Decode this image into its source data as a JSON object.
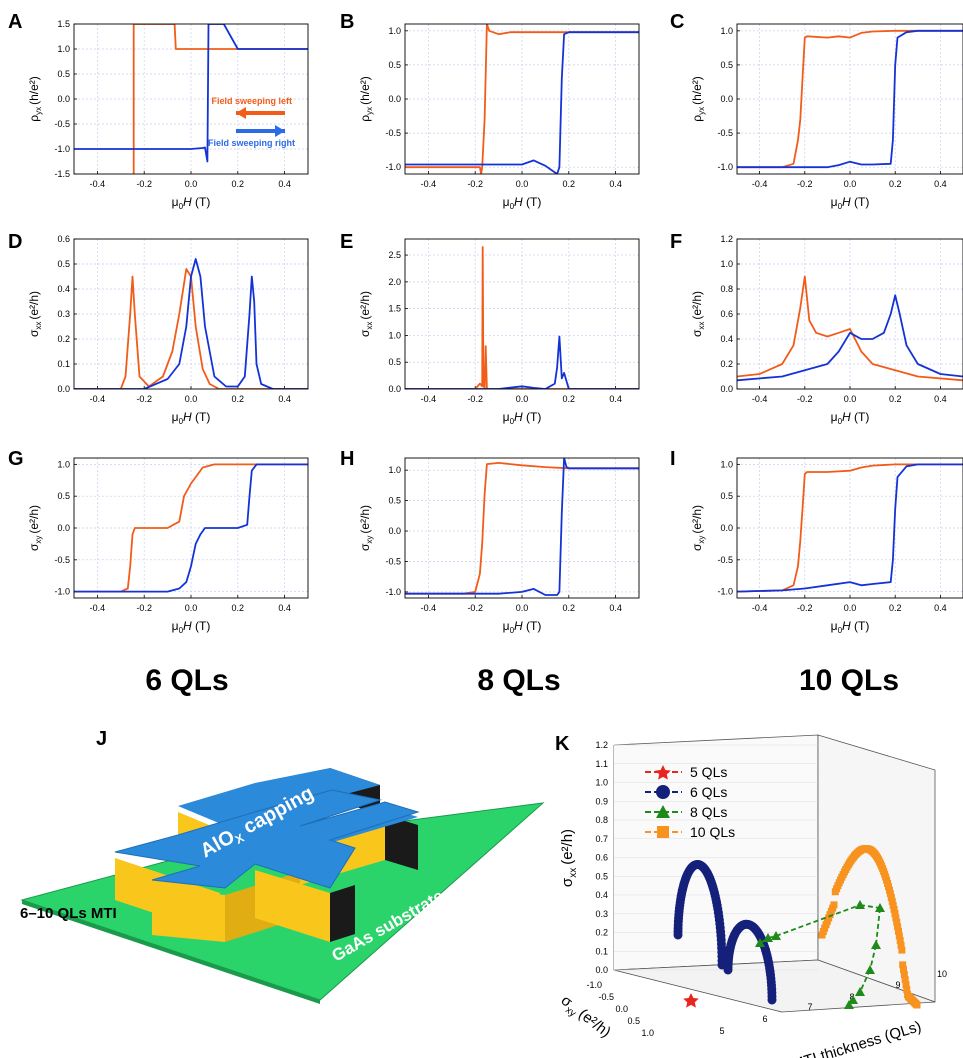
{
  "figure": {
    "column_titles": [
      "6 QLs",
      "8 QLs",
      "10 QLs"
    ],
    "xlabel_sym": "μ",
    "xlabel_sub": "0",
    "xlabel_var": "H",
    "xlabel_unit": " (T)"
  },
  "legend_A": {
    "left": "Field sweeping left",
    "right": "Field sweeping right"
  },
  "colors": {
    "sweep_left": "#f25c19",
    "sweep_right": "#1433d6",
    "grid": "#c9cdf0"
  },
  "chart_data": [
    {
      "panel": "A",
      "type": "line",
      "ylabel": {
        "sym": "ρ",
        "sub": "yx",
        "unit": "(h/e²)"
      },
      "xlim": [
        -0.5,
        0.5
      ],
      "ylim": [
        -1.5,
        1.5
      ],
      "xticks": [
        "-0.4",
        "-0.2",
        "0.0",
        "0.2",
        "0.4"
      ],
      "xtick_values": [
        -0.4,
        -0.2,
        0,
        0.2,
        0.4
      ],
      "yticks": [
        "-1.5",
        "-1.0",
        "-0.5",
        "0.0",
        "0.5",
        "1.0",
        "1.5"
      ],
      "ytick_values": [
        -1.5,
        -1,
        -0.5,
        0,
        0.5,
        1,
        1.5
      ],
      "series": [
        {
          "color": "sweep_left",
          "x": [
            -0.245,
            -0.245,
            -0.07,
            -0.065,
            -0.05,
            0.2,
            0.21,
            0.5
          ],
          "y": [
            -1.5,
            1.5,
            1.5,
            1.0,
            1.0,
            1.0,
            1.0,
            1.0
          ]
        },
        {
          "color": "sweep_right",
          "x": [
            -0.5,
            -0.1,
            0.0,
            0.05,
            0.06,
            0.07,
            0.075,
            0.08,
            0.09,
            0.14,
            0.2,
            0.3,
            0.5
          ],
          "y": [
            -1.0,
            -1.0,
            -1.0,
            -0.98,
            -0.97,
            -1.25,
            1.5,
            1.5,
            1.5,
            1.5,
            1.0,
            1.0,
            1.0
          ]
        }
      ]
    },
    {
      "panel": "B",
      "type": "line",
      "ylabel": {
        "sym": "ρ",
        "sub": "yx",
        "unit": "(h/e²)"
      },
      "xlim": [
        -0.5,
        0.5
      ],
      "ylim": [
        -1.1,
        1.1
      ],
      "xticks": [
        "-0.4",
        "-0.2",
        "0.0",
        "0.2",
        "0.4"
      ],
      "xtick_values": [
        -0.4,
        -0.2,
        0,
        0.2,
        0.4
      ],
      "yticks": [
        "-1.0",
        "-0.5",
        "0.0",
        "0.5",
        "1.0"
      ],
      "ytick_values": [
        -1,
        -0.5,
        0,
        0.5,
        1
      ],
      "series": [
        {
          "color": "sweep_left",
          "x": [
            -0.5,
            -0.2,
            -0.18,
            -0.175,
            -0.17,
            -0.16,
            -0.15,
            -0.14,
            -0.1,
            -0.05,
            0.0,
            0.1,
            0.2,
            0.5
          ],
          "y": [
            -1.0,
            -1.0,
            -1.0,
            -1.1,
            -1.0,
            -0.3,
            1.1,
            1.0,
            0.95,
            0.98,
            0.98,
            0.98,
            0.98,
            0.98
          ]
        },
        {
          "color": "sweep_right",
          "x": [
            -0.5,
            -0.2,
            -0.1,
            0.0,
            0.05,
            0.1,
            0.15,
            0.16,
            0.17,
            0.18,
            0.2,
            0.3,
            0.5
          ],
          "y": [
            -0.96,
            -0.96,
            -0.96,
            -0.96,
            -0.9,
            -0.98,
            -1.1,
            -1.0,
            0.3,
            0.95,
            0.98,
            0.98,
            0.98
          ]
        }
      ]
    },
    {
      "panel": "C",
      "type": "line",
      "ylabel": {
        "sym": "ρ",
        "sub": "yx",
        "unit": "(h/e²)"
      },
      "xlim": [
        -0.5,
        0.5
      ],
      "ylim": [
        -1.1,
        1.1
      ],
      "xticks": [
        "-0.4",
        "-0.2",
        "0.0",
        "0.2",
        "0.4"
      ],
      "xtick_values": [
        -0.4,
        -0.2,
        0,
        0.2,
        0.4
      ],
      "yticks": [
        "-1.0",
        "-0.5",
        "0.0",
        "0.5",
        "1.0"
      ],
      "ytick_values": [
        -1,
        -0.5,
        0,
        0.5,
        1
      ],
      "series": [
        {
          "color": "sweep_left",
          "x": [
            -0.5,
            -0.3,
            -0.25,
            -0.23,
            -0.22,
            -0.21,
            -0.2,
            -0.19,
            -0.1,
            -0.05,
            0.0,
            0.05,
            0.1,
            0.2,
            0.5
          ],
          "y": [
            -1.0,
            -1.0,
            -0.95,
            -0.6,
            -0.3,
            0.3,
            0.9,
            0.92,
            0.9,
            0.92,
            0.9,
            0.97,
            0.99,
            1.0,
            1.0
          ]
        },
        {
          "color": "sweep_right",
          "x": [
            -0.5,
            -0.2,
            -0.1,
            -0.05,
            0.0,
            0.05,
            0.1,
            0.18,
            0.19,
            0.2,
            0.21,
            0.25,
            0.3,
            0.5
          ],
          "y": [
            -1.0,
            -1.0,
            -1.0,
            -0.97,
            -0.92,
            -0.96,
            -0.96,
            -0.95,
            -0.6,
            0.5,
            0.9,
            0.98,
            1.0,
            1.0
          ]
        }
      ]
    },
    {
      "panel": "D",
      "type": "line",
      "ylabel": {
        "sym": "σ",
        "sub": "xx",
        "unit": "(e²/h)"
      },
      "xlim": [
        -0.5,
        0.5
      ],
      "ylim": [
        0,
        0.6
      ],
      "xticks": [
        "-0.4",
        "-0.2",
        "0.0",
        "0.2",
        "0.4"
      ],
      "xtick_values": [
        -0.4,
        -0.2,
        0,
        0.2,
        0.4
      ],
      "yticks": [
        "0.0",
        "0.1",
        "0.2",
        "0.3",
        "0.4",
        "0.5",
        "0.6"
      ],
      "ytick_values": [
        0,
        0.1,
        0.2,
        0.3,
        0.4,
        0.5,
        0.6
      ],
      "series": [
        {
          "color": "sweep_left",
          "x": [
            -0.5,
            -0.3,
            -0.28,
            -0.26,
            -0.25,
            -0.24,
            -0.22,
            -0.18,
            -0.12,
            -0.08,
            -0.05,
            -0.02,
            0.0,
            0.02,
            0.05,
            0.08,
            0.12,
            0.2,
            0.5
          ],
          "y": [
            0.0,
            0.0,
            0.05,
            0.3,
            0.45,
            0.3,
            0.05,
            0.01,
            0.05,
            0.15,
            0.3,
            0.48,
            0.45,
            0.25,
            0.08,
            0.02,
            0.0,
            0.0,
            0.0
          ]
        },
        {
          "color": "sweep_right",
          "x": [
            -0.5,
            -0.2,
            -0.1,
            -0.05,
            -0.02,
            0.0,
            0.02,
            0.04,
            0.06,
            0.1,
            0.15,
            0.2,
            0.23,
            0.25,
            0.26,
            0.27,
            0.28,
            0.3,
            0.35,
            0.5
          ],
          "y": [
            0.0,
            0.0,
            0.04,
            0.1,
            0.25,
            0.45,
            0.52,
            0.45,
            0.25,
            0.05,
            0.01,
            0.01,
            0.05,
            0.3,
            0.45,
            0.35,
            0.1,
            0.02,
            0.0,
            0.0
          ]
        }
      ]
    },
    {
      "panel": "E",
      "type": "line",
      "ylabel": {
        "sym": "σ",
        "sub": "xx",
        "unit": "(e²/h)"
      },
      "xlim": [
        -0.5,
        0.5
      ],
      "ylim": [
        0,
        2.8
      ],
      "xticks": [
        "-0.4",
        "-0.2",
        "0.0",
        "0.2",
        "0.4"
      ],
      "xtick_values": [
        -0.4,
        -0.2,
        0,
        0.2,
        0.4
      ],
      "yticks": [
        "0.0",
        "0.5",
        "1.0",
        "1.5",
        "2.0",
        "2.5"
      ],
      "ytick_values": [
        0,
        0.5,
        1,
        1.5,
        2,
        2.5
      ],
      "series": [
        {
          "color": "sweep_left",
          "x": [
            -0.5,
            -0.2,
            -0.18,
            -0.17,
            -0.168,
            -0.165,
            -0.16,
            -0.155,
            -0.15,
            -0.1,
            0.0,
            0.5
          ],
          "y": [
            0.0,
            0.0,
            0.1,
            0.05,
            2.65,
            0.1,
            0.0,
            0.8,
            0.0,
            0.0,
            0.0,
            0.0
          ]
        },
        {
          "color": "sweep_right",
          "x": [
            -0.5,
            -0.1,
            0.0,
            0.05,
            0.1,
            0.14,
            0.15,
            0.16,
            0.17,
            0.18,
            0.2,
            0.5
          ],
          "y": [
            0.0,
            0.0,
            0.05,
            0.02,
            0.0,
            0.1,
            0.4,
            0.98,
            0.2,
            0.3,
            0.0,
            0.0
          ]
        }
      ]
    },
    {
      "panel": "F",
      "type": "line",
      "ylabel": {
        "sym": "σ",
        "sub": "xx",
        "unit": "(e²/h)"
      },
      "xlim": [
        -0.5,
        0.5
      ],
      "ylim": [
        0,
        1.2
      ],
      "xticks": [
        "-0.4",
        "-0.2",
        "0.0",
        "0.2",
        "0.4"
      ],
      "xtick_values": [
        -0.4,
        -0.2,
        0,
        0.2,
        0.4
      ],
      "yticks": [
        "0.0",
        "0.2",
        "0.4",
        "0.6",
        "0.8",
        "1.0",
        "1.2"
      ],
      "ytick_values": [
        0,
        0.2,
        0.4,
        0.6,
        0.8,
        1,
        1.2
      ],
      "series": [
        {
          "color": "sweep_left",
          "x": [
            -0.5,
            -0.4,
            -0.3,
            -0.25,
            -0.22,
            -0.2,
            -0.18,
            -0.15,
            -0.1,
            -0.05,
            0.0,
            0.05,
            0.1,
            0.2,
            0.3,
            0.5
          ],
          "y": [
            0.1,
            0.12,
            0.2,
            0.35,
            0.65,
            0.9,
            0.55,
            0.45,
            0.42,
            0.45,
            0.48,
            0.3,
            0.2,
            0.15,
            0.1,
            0.07
          ]
        },
        {
          "color": "sweep_right",
          "x": [
            -0.5,
            -0.3,
            -0.2,
            -0.1,
            -0.05,
            0.0,
            0.05,
            0.1,
            0.15,
            0.18,
            0.2,
            0.22,
            0.25,
            0.3,
            0.4,
            0.5
          ],
          "y": [
            0.07,
            0.1,
            0.15,
            0.2,
            0.3,
            0.45,
            0.4,
            0.4,
            0.45,
            0.6,
            0.75,
            0.6,
            0.35,
            0.2,
            0.12,
            0.1
          ]
        }
      ]
    },
    {
      "panel": "G",
      "type": "line",
      "ylabel": {
        "sym": "σ",
        "sub": "xy",
        "unit": "(e²/h)"
      },
      "xlim": [
        -0.5,
        0.5
      ],
      "ylim": [
        -1.1,
        1.1
      ],
      "xticks": [
        "-0.4",
        "-0.2",
        "0.0",
        "0.2",
        "0.4"
      ],
      "xtick_values": [
        -0.4,
        -0.2,
        0,
        0.2,
        0.4
      ],
      "yticks": [
        "-1.0",
        "-0.5",
        "0.0",
        "0.5",
        "1.0"
      ],
      "ytick_values": [
        -1,
        -0.5,
        0,
        0.5,
        1
      ],
      "series": [
        {
          "color": "sweep_left",
          "x": [
            -0.5,
            -0.3,
            -0.27,
            -0.26,
            -0.25,
            -0.24,
            -0.1,
            -0.05,
            -0.03,
            0.0,
            0.05,
            0.1,
            0.2,
            0.5
          ],
          "y": [
            -1.0,
            -1.0,
            -0.95,
            -0.6,
            -0.1,
            0.0,
            0.0,
            0.1,
            0.5,
            0.7,
            0.95,
            1.0,
            1.0,
            1.0
          ]
        },
        {
          "color": "sweep_right",
          "x": [
            -0.5,
            -0.1,
            -0.05,
            -0.02,
            0.0,
            0.02,
            0.04,
            0.06,
            0.1,
            0.2,
            0.24,
            0.25,
            0.26,
            0.28,
            0.3,
            0.5
          ],
          "y": [
            -1.0,
            -1.0,
            -0.95,
            -0.85,
            -0.6,
            -0.25,
            -0.1,
            0.0,
            0.0,
            0.0,
            0.05,
            0.5,
            0.9,
            1.0,
            1.0,
            1.0
          ]
        }
      ]
    },
    {
      "panel": "H",
      "type": "line",
      "ylabel": {
        "sym": "σ",
        "sub": "xy",
        "unit": "(e²/h)"
      },
      "xlim": [
        -0.5,
        0.5
      ],
      "ylim": [
        -1.1,
        1.2
      ],
      "xticks": [
        "-0.4",
        "-0.2",
        "0.0",
        "0.2",
        "0.4"
      ],
      "xtick_values": [
        -0.4,
        -0.2,
        0,
        0.2,
        0.4
      ],
      "yticks": [
        "-1.0",
        "-0.5",
        "0.0",
        "0.5",
        "1.0"
      ],
      "ytick_values": [
        -1,
        -0.5,
        0,
        0.5,
        1
      ],
      "series": [
        {
          "color": "sweep_left",
          "x": [
            -0.5,
            -0.25,
            -0.2,
            -0.18,
            -0.17,
            -0.16,
            -0.15,
            -0.1,
            -0.05,
            0.0,
            0.1,
            0.2,
            0.5
          ],
          "y": [
            -1.03,
            -1.03,
            -1.0,
            -0.7,
            -0.2,
            0.6,
            1.1,
            1.12,
            1.1,
            1.08,
            1.05,
            1.03,
            1.03
          ]
        },
        {
          "color": "sweep_right",
          "x": [
            -0.5,
            -0.1,
            0.0,
            0.05,
            0.1,
            0.15,
            0.16,
            0.17,
            0.18,
            0.19,
            0.2,
            0.3,
            0.5
          ],
          "y": [
            -1.03,
            -1.03,
            -1.0,
            -0.95,
            -1.05,
            -1.05,
            -1.0,
            0.3,
            1.2,
            1.05,
            1.03,
            1.03,
            1.03
          ]
        }
      ]
    },
    {
      "panel": "I",
      "type": "line",
      "ylabel": {
        "sym": "σ",
        "sub": "xy",
        "unit": "(e²/h)"
      },
      "xlim": [
        -0.5,
        0.5
      ],
      "ylim": [
        -1.1,
        1.1
      ],
      "xticks": [
        "-0.4",
        "-0.2",
        "0.0",
        "0.2",
        "0.4"
      ],
      "xtick_values": [
        -0.4,
        -0.2,
        0,
        0.2,
        0.4
      ],
      "yticks": [
        "-1.0",
        "-0.5",
        "0.0",
        "0.5",
        "1.0"
      ],
      "ytick_values": [
        -1,
        -0.5,
        0,
        0.5,
        1
      ],
      "series": [
        {
          "color": "sweep_left",
          "x": [
            -0.5,
            -0.3,
            -0.25,
            -0.23,
            -0.22,
            -0.21,
            -0.2,
            -0.19,
            -0.1,
            0.0,
            0.05,
            0.1,
            0.2,
            0.5
          ],
          "y": [
            -1.0,
            -0.98,
            -0.9,
            -0.6,
            -0.2,
            0.3,
            0.85,
            0.88,
            0.88,
            0.9,
            0.95,
            0.98,
            1.0,
            1.0
          ]
        },
        {
          "color": "sweep_right",
          "x": [
            -0.5,
            -0.3,
            -0.2,
            -0.1,
            0.0,
            0.05,
            0.1,
            0.18,
            0.19,
            0.2,
            0.21,
            0.25,
            0.3,
            0.5
          ],
          "y": [
            -1.0,
            -0.98,
            -0.95,
            -0.9,
            -0.85,
            -0.9,
            -0.88,
            -0.85,
            -0.5,
            0.3,
            0.8,
            0.97,
            1.0,
            1.0
          ]
        }
      ]
    },
    {
      "panel": "K",
      "type": "scatter",
      "zlabel": {
        "sym": "σ",
        "sub": "xx",
        "unit": "(e²/h)"
      },
      "ylabel": {
        "sym": "σ",
        "sub": "xy",
        "unit": "(e²/h)"
      },
      "xlabel": "MTI thickness (QLs)",
      "zlim": [
        0,
        1.2
      ],
      "zticks": [
        "0.0",
        "0.1",
        "0.2",
        "0.3",
        "0.4",
        "0.5",
        "0.6",
        "0.7",
        "0.8",
        "0.9",
        "1.0",
        "1.1",
        "1.2"
      ],
      "xticks": [
        "5",
        "6",
        "7",
        "8",
        "9",
        "10"
      ],
      "yticks": [
        "-1.0",
        "-0.5",
        "0.0",
        "0.5",
        "1.0"
      ],
      "legend": [
        {
          "label": "5 QLs",
          "marker": "star",
          "color": "#e8261f"
        },
        {
          "label": "6 QLs",
          "marker": "circle",
          "color": "#15207a"
        },
        {
          "label": "8 QLs",
          "marker": "triangle",
          "color": "#1e8a1a"
        },
        {
          "label": "10 QLs",
          "marker": "square",
          "color": "#f7931e"
        }
      ]
    }
  ],
  "device_J": {
    "panel_letter": "J",
    "capping_main": "AlO",
    "capping_sub": "X",
    "capping_rest": " capping",
    "substrate": "GaAs substrate",
    "film": "6–10 QLs MTI"
  },
  "panel_letters": [
    "A",
    "B",
    "C",
    "D",
    "E",
    "F",
    "G",
    "H",
    "I",
    "J",
    "K"
  ]
}
